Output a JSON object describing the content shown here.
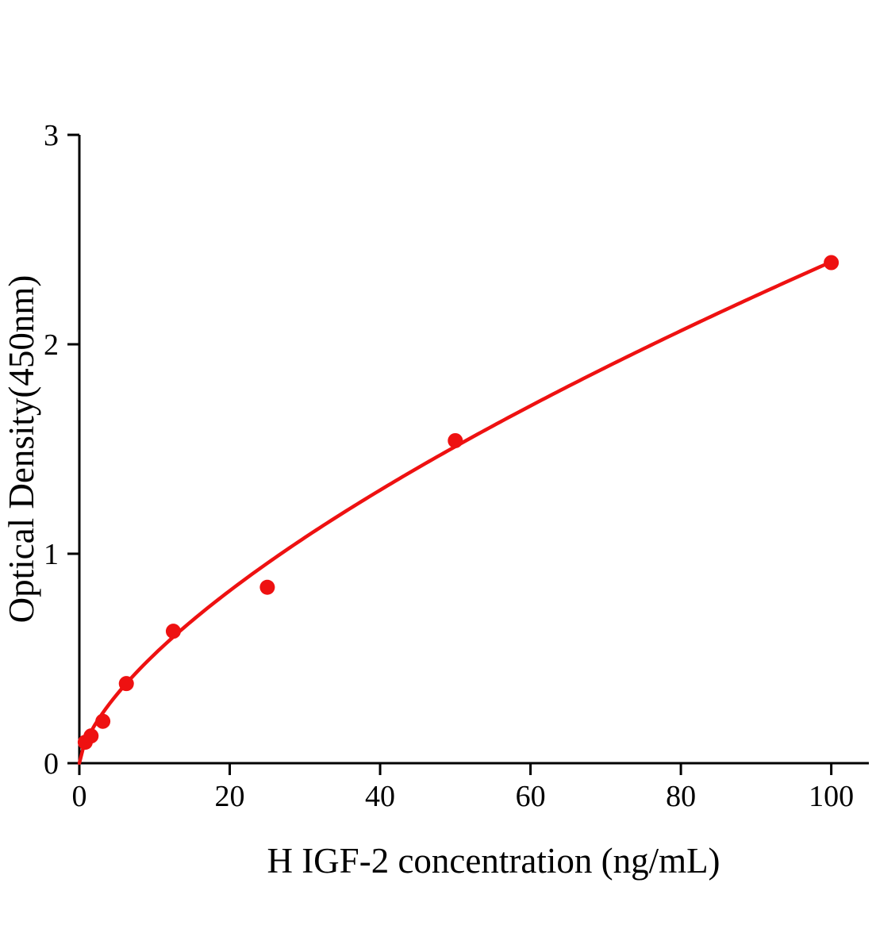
{
  "figure": {
    "background": "#ffffff"
  },
  "chart_data": {
    "type": "scatter",
    "title": "",
    "xlabel": "H IGF-2 concentration (ng/mL)",
    "ylabel": "Optical Density(450nm)",
    "x": [
      0.78,
      1.56,
      3.125,
      6.25,
      12.5,
      25,
      50,
      100
    ],
    "y": [
      0.1,
      0.13,
      0.2,
      0.38,
      0.63,
      0.84,
      1.54,
      2.39
    ],
    "xlim": [
      0,
      105
    ],
    "ylim": [
      0,
      3
    ],
    "xticks": [
      0,
      20,
      40,
      60,
      80,
      100
    ],
    "yticks": [
      0,
      1,
      2,
      3
    ],
    "grid": false,
    "legend": null,
    "point_color": "#ee1111",
    "curve_color": "#ee1111",
    "axis_color": "#000000",
    "fit": {
      "type": "power",
      "a": 0.113,
      "b": 0.663,
      "x_start": 0,
      "x_end": 100
    }
  }
}
